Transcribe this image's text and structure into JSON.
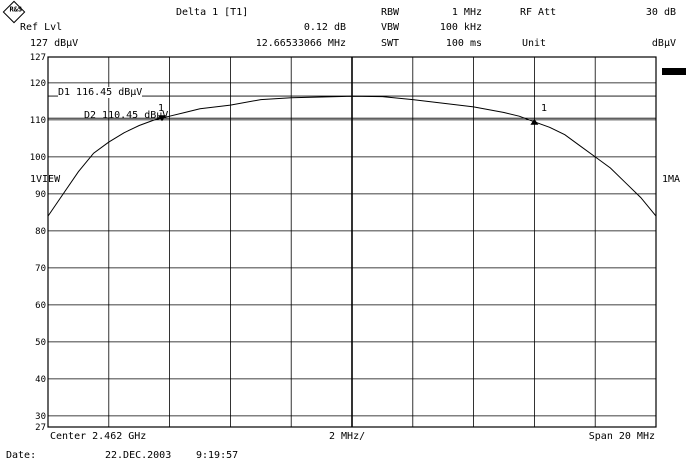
{
  "header": {
    "logo_text": "R&S",
    "ref_lvl_label": "Ref Lvl",
    "ref_lvl_value": "127 dBµV",
    "delta_label": "Delta 1 [T1]",
    "delta_value": "0.12 dB",
    "delta_freq": "12.66533066 MHz",
    "rbw_label": "RBW",
    "rbw_value": "1 MHz",
    "vbw_label": "VBW",
    "vbw_value": "100 kHz",
    "swt_label": "SWT",
    "swt_value": "100 ms",
    "rfatt_label": "RF Att",
    "rfatt_value": "30 dB",
    "unit_label": "Unit",
    "unit_value": "dBµV"
  },
  "side": {
    "view_label": "1VIEW",
    "right_label": "1MA"
  },
  "markers": {
    "d1_label": "D1 116.45 dBµV",
    "d2_label": "D2 110.45 dBµV",
    "m1_left": "1",
    "m1_right": "1"
  },
  "footer": {
    "center": "Center 2.462 GHz",
    "div": "2 MHz/",
    "span": "Span 20 MHz",
    "date_label": "Date:",
    "date_value": "22.DEC.2003",
    "time_value": "9:19:57"
  },
  "chart_data": {
    "type": "line",
    "x_range_mhz": [
      -10,
      10
    ],
    "ylim": [
      27,
      127
    ],
    "y_ticks": [
      127,
      120,
      110,
      100,
      90,
      80,
      70,
      60,
      50,
      40,
      30,
      27
    ],
    "grid": true,
    "reference_lines": [
      116.45,
      110.45
    ],
    "series": [
      {
        "x": [
          -10,
          -9.5,
          -9,
          -8.5,
          -8,
          -7.5,
          -7,
          -6.5,
          -6,
          -5.5,
          -5,
          -4,
          -3,
          -2,
          -1,
          0,
          1,
          2,
          3,
          4,
          5,
          5.5,
          6,
          6.5,
          7,
          7.5,
          8,
          8.5,
          9,
          9.5,
          10
        ],
        "values": [
          84,
          90,
          96,
          101,
          104,
          106.5,
          108.5,
          110,
          111,
          112,
          113,
          114,
          115.5,
          116,
          116.2,
          116.4,
          116.3,
          115.5,
          114.5,
          113.5,
          112,
          111,
          109.5,
          108,
          106,
          103,
          100,
          97,
          93,
          89,
          84
        ]
      }
    ],
    "markers": [
      {
        "x": -6.25,
        "y": 110.45
      },
      {
        "x": 6.0,
        "y": 109.5
      }
    ]
  }
}
